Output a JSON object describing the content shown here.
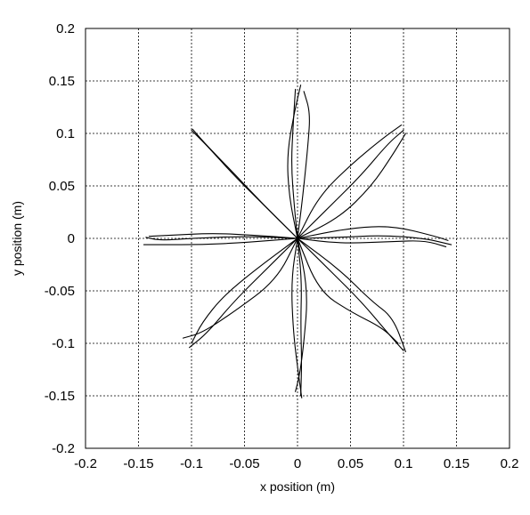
{
  "chart_data": {
    "type": "line",
    "title": "",
    "xlabel": "x position (m)",
    "ylabel": "y position (m)",
    "xlim": [
      -0.2,
      0.2
    ],
    "ylim": [
      -0.2,
      0.2
    ],
    "xticks": [
      -0.2,
      -0.15,
      -0.1,
      -0.05,
      0,
      0.05,
      0.1,
      0.15,
      0.2
    ],
    "yticks": [
      -0.2,
      -0.15,
      -0.1,
      -0.05,
      0,
      0.05,
      0.1,
      0.15,
      0.2
    ],
    "xtick_labels": [
      "-0.2",
      "-0.15",
      "-0.1",
      "-0.05",
      "0",
      "0.05",
      "0.1",
      "0.15",
      "0.2"
    ],
    "ytick_labels": [
      "-0.2",
      "-0.15",
      "-0.1",
      "-0.05",
      "0",
      "0.05",
      "0.1",
      "0.15",
      "0.2"
    ],
    "grid": true,
    "line_color": "#000000",
    "series": [
      {
        "points": [
          [
            0,
            0
          ],
          [
            -0.003,
            0.03
          ],
          [
            -0.006,
            0.07
          ],
          [
            -0.004,
            0.11
          ],
          [
            -0.002,
            0.142
          ]
        ]
      },
      {
        "points": [
          [
            0,
            0
          ],
          [
            -0.008,
            0.04
          ],
          [
            -0.01,
            0.08
          ],
          [
            -0.003,
            0.12
          ],
          [
            0.003,
            0.146
          ]
        ]
      },
      {
        "points": [
          [
            0,
            0
          ],
          [
            0.005,
            0.04
          ],
          [
            0.01,
            0.09
          ],
          [
            0.012,
            0.12
          ],
          [
            0.006,
            0.14
          ]
        ]
      },
      {
        "points": [
          [
            0,
            0
          ],
          [
            0.03,
            0.03
          ],
          [
            0.06,
            0.06
          ],
          [
            0.085,
            0.09
          ],
          [
            0.1,
            0.103
          ]
        ]
      },
      {
        "points": [
          [
            0,
            0
          ],
          [
            0.02,
            0.04
          ],
          [
            0.05,
            0.07
          ],
          [
            0.08,
            0.095
          ],
          [
            0.098,
            0.108
          ]
        ]
      },
      {
        "points": [
          [
            0,
            0
          ],
          [
            0.04,
            0.02
          ],
          [
            0.07,
            0.05
          ],
          [
            0.09,
            0.08
          ],
          [
            0.102,
            0.1
          ]
        ]
      },
      {
        "points": [
          [
            0,
            0
          ],
          [
            0.04,
            0.001
          ],
          [
            0.08,
            0.003
          ],
          [
            0.12,
            0
          ],
          [
            0.145,
            -0.006
          ]
        ]
      },
      {
        "points": [
          [
            0,
            0
          ],
          [
            0.05,
            0.01
          ],
          [
            0.09,
            0.012
          ],
          [
            0.13,
            0.002
          ],
          [
            0.142,
            -0.002
          ]
        ]
      },
      {
        "points": [
          [
            0,
            0
          ],
          [
            0.04,
            -0.005
          ],
          [
            0.09,
            -0.003
          ],
          [
            0.12,
            -0.002
          ],
          [
            0.14,
            -0.008
          ]
        ]
      },
      {
        "points": [
          [
            0,
            0
          ],
          [
            0.03,
            -0.03
          ],
          [
            0.06,
            -0.06
          ],
          [
            0.085,
            -0.09
          ],
          [
            0.1,
            -0.107
          ]
        ]
      },
      {
        "points": [
          [
            0,
            0
          ],
          [
            0.02,
            -0.05
          ],
          [
            0.05,
            -0.07
          ],
          [
            0.08,
            -0.085
          ],
          [
            0.095,
            -0.1
          ]
        ]
      },
      {
        "points": [
          [
            0,
            0
          ],
          [
            0.04,
            -0.03
          ],
          [
            0.07,
            -0.06
          ],
          [
            0.09,
            -0.075
          ],
          [
            0.102,
            -0.108
          ]
        ]
      },
      {
        "points": [
          [
            0,
            0
          ],
          [
            0.004,
            -0.04
          ],
          [
            0.003,
            -0.08
          ],
          [
            0.004,
            -0.12
          ],
          [
            0.003,
            -0.15
          ]
        ]
      },
      {
        "points": [
          [
            0,
            0
          ],
          [
            0.01,
            -0.05
          ],
          [
            0.006,
            -0.1
          ],
          [
            0.002,
            -0.13
          ],
          [
            -0.002,
            -0.146
          ]
        ]
      },
      {
        "points": [
          [
            0,
            0
          ],
          [
            -0.006,
            -0.04
          ],
          [
            -0.004,
            -0.09
          ],
          [
            0.001,
            -0.13
          ],
          [
            0.004,
            -0.152
          ]
        ]
      },
      {
        "points": [
          [
            0,
            0
          ],
          [
            -0.03,
            -0.03
          ],
          [
            -0.06,
            -0.06
          ],
          [
            -0.085,
            -0.09
          ],
          [
            -0.102,
            -0.104
          ]
        ]
      },
      {
        "points": [
          [
            0,
            0
          ],
          [
            -0.02,
            -0.04
          ],
          [
            -0.06,
            -0.07
          ],
          [
            -0.09,
            -0.09
          ],
          [
            -0.108,
            -0.095
          ]
        ]
      },
      {
        "points": [
          [
            0,
            0
          ],
          [
            -0.04,
            -0.03
          ],
          [
            -0.07,
            -0.055
          ],
          [
            -0.09,
            -0.08
          ],
          [
            -0.1,
            -0.1
          ]
        ]
      },
      {
        "points": [
          [
            0,
            0
          ],
          [
            -0.05,
            -0.004
          ],
          [
            -0.09,
            -0.006
          ],
          [
            -0.13,
            -0.006
          ],
          [
            -0.145,
            -0.006
          ]
        ]
      },
      {
        "points": [
          [
            0,
            0
          ],
          [
            -0.04,
            0.003
          ],
          [
            -0.08,
            0.005
          ],
          [
            -0.12,
            0.003
          ],
          [
            -0.14,
            0.002
          ]
        ]
      },
      {
        "points": [
          [
            0,
            0
          ],
          [
            -0.05,
            0.002
          ],
          [
            -0.1,
            0.0
          ],
          [
            -0.13,
            -0.002
          ],
          [
            -0.143,
            0.001
          ]
        ]
      },
      {
        "points": [
          [
            0,
            0
          ],
          [
            -0.03,
            0.03
          ],
          [
            -0.06,
            0.06
          ],
          [
            -0.085,
            0.088
          ],
          [
            -0.1,
            0.103
          ]
        ]
      },
      {
        "points": [
          [
            0,
            0
          ],
          [
            -0.032,
            0.032
          ],
          [
            -0.062,
            0.064
          ],
          [
            -0.087,
            0.09
          ],
          [
            -0.099,
            0.104
          ]
        ]
      }
    ]
  }
}
